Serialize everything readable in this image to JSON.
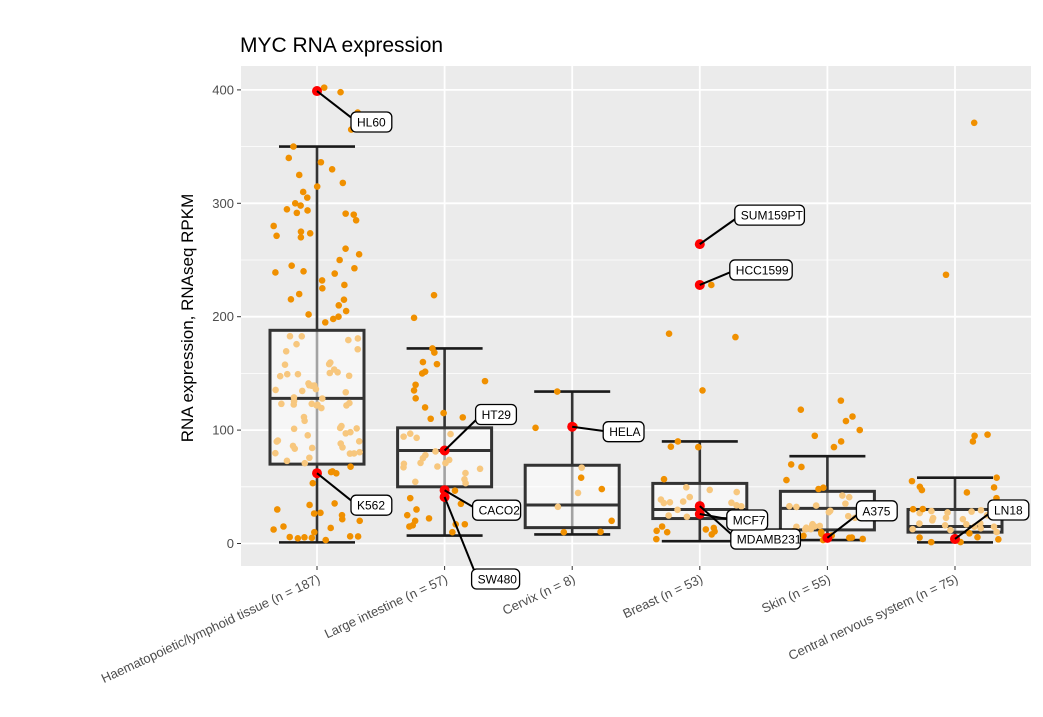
{
  "chart_data": {
    "type": "box",
    "title": "MYC RNA expression",
    "xlabel": "",
    "ylabel": "RNA expression, RNAseq RPKM",
    "ylim": [
      -22,
      420
    ],
    "yticks": [
      0,
      100,
      200,
      300,
      400
    ],
    "grid": true,
    "colors": {
      "panel": "#ebebeb",
      "grid": "#ffffff",
      "box_line": "#333333",
      "box_fill": "#ffffff",
      "whisker": "#1a1a1a",
      "point_out": "#f09000",
      "point_in": "#f7c77e",
      "highlight": "#ff0000",
      "tick_text": "#4d4d4d"
    },
    "categories": [
      "Haematopoietic/lymphoid tissue (n = 187)",
      "Large intestine (n = 57)",
      "Cervix (n = 8)",
      "Breast (n = 53)",
      "Skin (n = 55)",
      "Central nervous system (n = 75)"
    ],
    "boxes": [
      {
        "q1": 70,
        "median": 128,
        "q3": 188,
        "whisker_low": 1,
        "whisker_high": 350
      },
      {
        "q1": 50,
        "median": 82,
        "q3": 102,
        "whisker_low": 7,
        "whisker_high": 172
      },
      {
        "q1": 14,
        "median": 34,
        "q3": 69,
        "whisker_low": 8,
        "whisker_high": 134
      },
      {
        "q1": 22,
        "median": 30,
        "q3": 53,
        "whisker_low": 2,
        "whisker_high": 90
      },
      {
        "q1": 12,
        "median": 31,
        "q3": 46,
        "whisker_low": 3,
        "whisker_high": 77
      },
      {
        "q1": 10,
        "median": 15,
        "q3": 30,
        "whisker_low": 1,
        "whisker_high": 58
      }
    ],
    "outliers": [
      {
        "category": 0,
        "values": [
          402,
          398,
          380,
          365,
          350,
          340,
          330,
          325,
          318,
          310,
          305,
          300,
          298,
          290,
          285,
          280,
          275,
          270,
          260,
          255,
          250,
          245,
          240,
          238,
          232,
          228,
          225,
          220,
          215,
          210,
          205,
          200,
          198,
          195,
          30,
          25,
          20,
          15,
          10,
          5
        ]
      },
      {
        "category": 1,
        "values": [
          219,
          199,
          172,
          160,
          150,
          140,
          135,
          128,
          120,
          115,
          110,
          40,
          35,
          30,
          25,
          20,
          15,
          10
        ]
      },
      {
        "category": 2,
        "values": [
          134,
          103,
          102,
          58,
          48,
          20,
          10
        ]
      },
      {
        "category": 3,
        "values": [
          264,
          228,
          185,
          182,
          135,
          90,
          85,
          15,
          10,
          8
        ]
      },
      {
        "category": 4,
        "values": [
          126,
          118,
          112,
          108,
          100,
          95,
          90,
          85,
          5,
          4
        ]
      },
      {
        "category": 5,
        "values": [
          371,
          237,
          96,
          95,
          90,
          58,
          55,
          50,
          45,
          40
        ]
      }
    ],
    "highlights": [
      {
        "category": 0,
        "label": "HL60",
        "value": 399
      },
      {
        "category": 0,
        "label": "K562",
        "value": 62
      },
      {
        "category": 1,
        "label": "HT29",
        "value": 82
      },
      {
        "category": 1,
        "label": "CACO2",
        "value": 47
      },
      {
        "category": 1,
        "label": "SW480",
        "value": 41
      },
      {
        "category": 2,
        "label": "HELA",
        "value": 103
      },
      {
        "category": 3,
        "label": "SUM159PT",
        "value": 264
      },
      {
        "category": 3,
        "label": "HCC1599",
        "value": 228
      },
      {
        "category": 3,
        "label": "MDAMB231",
        "value": 33
      },
      {
        "category": 3,
        "label": "MCF7",
        "value": 26
      },
      {
        "category": 4,
        "label": "A375",
        "value": 5
      },
      {
        "category": 5,
        "label": "LN18",
        "value": 4
      }
    ]
  }
}
